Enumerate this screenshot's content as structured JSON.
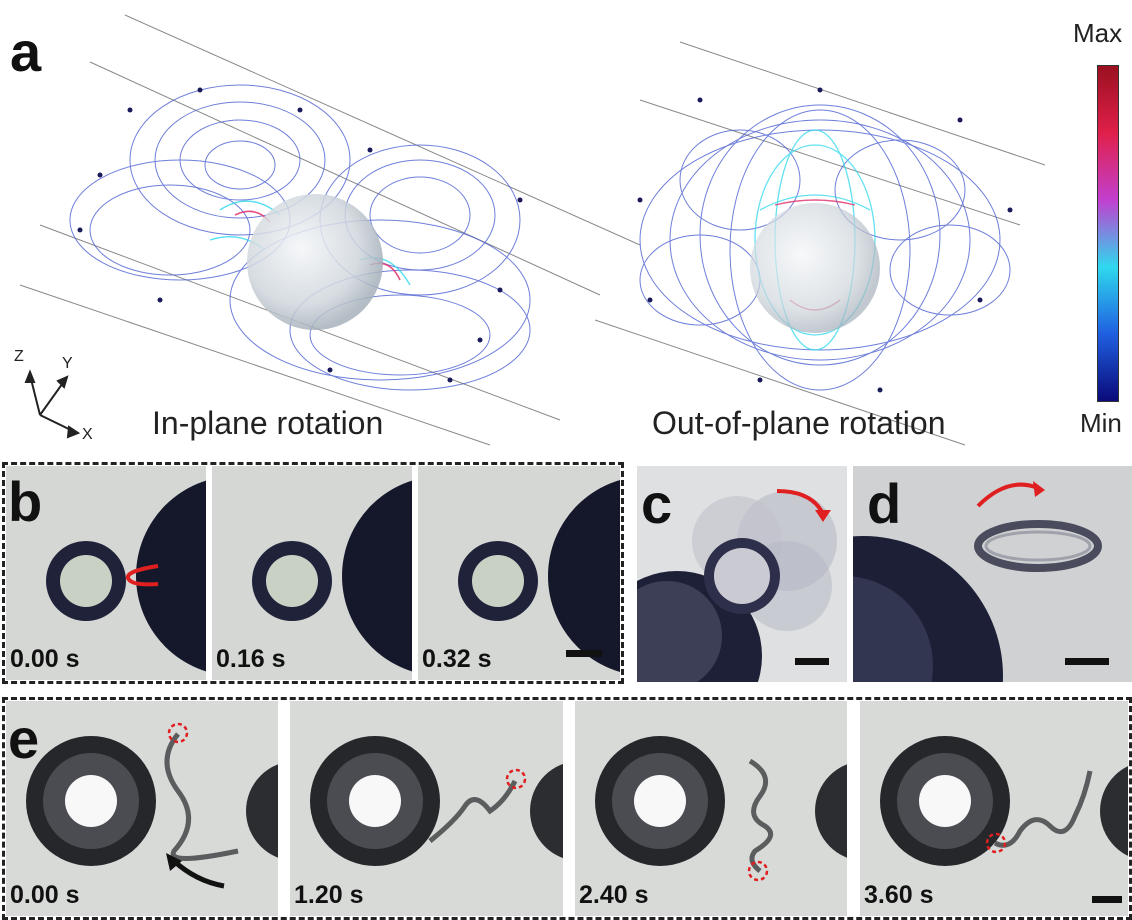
{
  "panels": {
    "a": {
      "letter": "a",
      "left_caption": "In-plane rotation",
      "right_caption": "Out-of-plane rotation",
      "colorbar": {
        "max_label": "Max",
        "min_label": "Min",
        "colors": [
          "#0a0a7a",
          "#1f5fe0",
          "#2fd8ee",
          "#c23fd0",
          "#e0204a",
          "#9a1020"
        ]
      },
      "axes": {
        "z": "Z",
        "y": "Y",
        "x": "X"
      }
    },
    "b": {
      "letter": "b",
      "times": [
        "0.00 s",
        "0.16 s",
        "0.32 s"
      ]
    },
    "c": {
      "letter": "c"
    },
    "d": {
      "letter": "d"
    },
    "e": {
      "letter": "e",
      "times": [
        "0.00 s",
        "1.20 s",
        "2.40 s",
        "3.60 s"
      ]
    }
  },
  "colors": {
    "arrow_red": "#e02020",
    "marker_red": "#e02020",
    "arrow_black": "#111111"
  }
}
